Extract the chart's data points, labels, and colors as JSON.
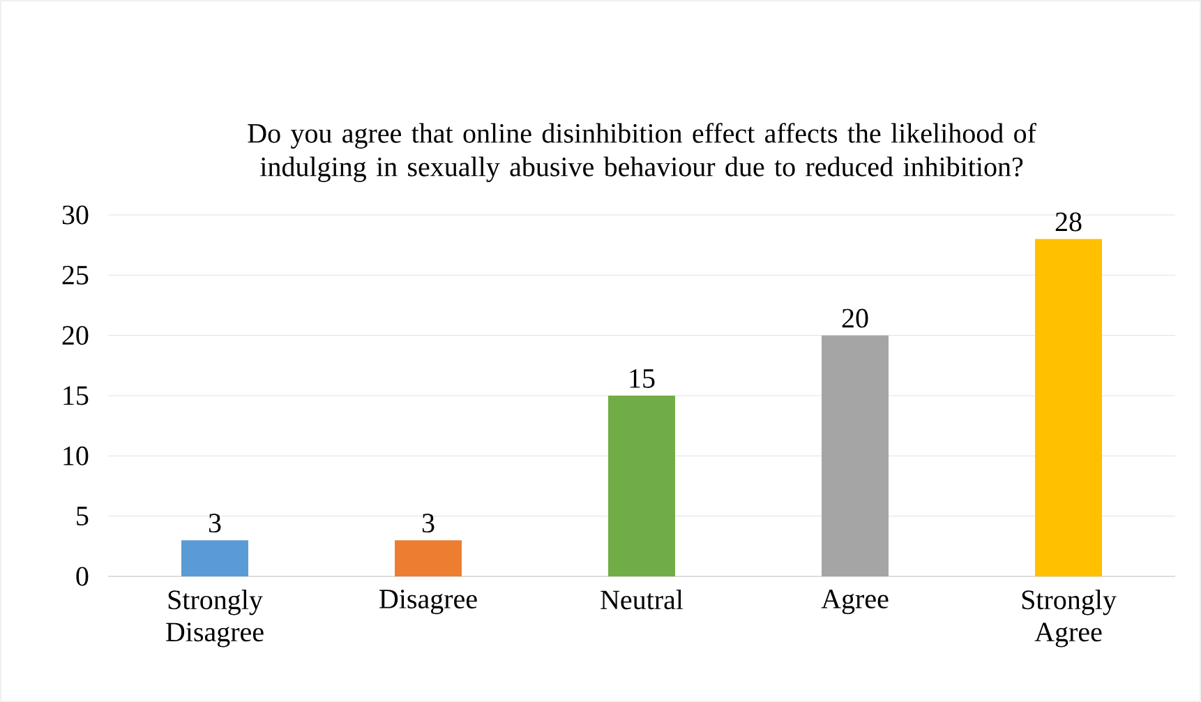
{
  "chart_data": {
    "type": "bar",
    "title": "Do you agree that online disinhibition effect affects the likelihood of indulging in sexually abusive behaviour due to reduced inhibition?",
    "categories": [
      "Strongly Disagree",
      "Disagree",
      "Neutral",
      "Agree",
      "Strongly Agree"
    ],
    "values": [
      3,
      3,
      15,
      20,
      28
    ],
    "colors": [
      "#5b9bd5",
      "#ed7d31",
      "#70ad47",
      "#a5a5a5",
      "#ffc000"
    ],
    "ylim": [
      0,
      30
    ],
    "yticks": [
      0,
      5,
      10,
      15,
      20,
      25,
      30
    ],
    "grid": "y",
    "data_labels": true
  }
}
